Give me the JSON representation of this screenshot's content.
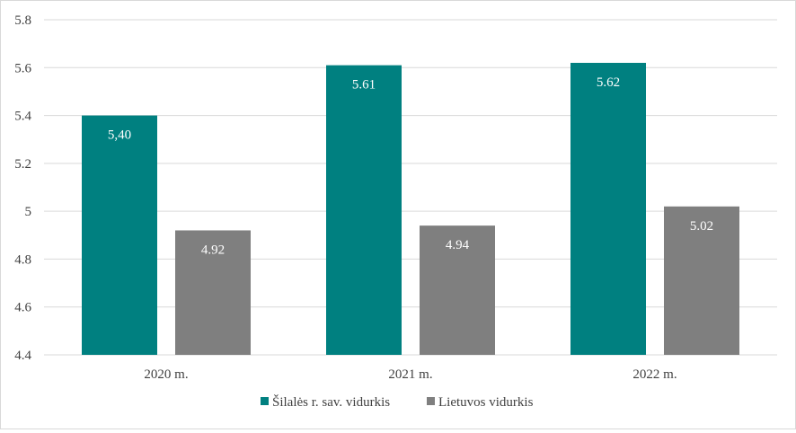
{
  "chart_data": {
    "type": "bar",
    "categories": [
      "2020 m.",
      "2021 m.",
      "2022 m."
    ],
    "series": [
      {
        "name": "Šilalės r. sav. vidurkis",
        "values": [
          5.4,
          5.61,
          5.62
        ],
        "labels": [
          "5,40",
          "5.61",
          "5.62"
        ],
        "color": "#008080"
      },
      {
        "name": "Lietuvos vidurkis",
        "values": [
          4.92,
          4.94,
          5.02
        ],
        "labels": [
          "4.92",
          "4.94",
          "5.02"
        ],
        "color": "#7f7f7f"
      }
    ],
    "ylim": [
      4.4,
      5.8
    ],
    "yticks": [
      {
        "value": 5.8,
        "label": "5.8"
      },
      {
        "value": 5.6,
        "label": "5.6"
      },
      {
        "value": 5.4,
        "label": "5.4"
      },
      {
        "value": 5.2,
        "label": "5.2"
      },
      {
        "value": 5.0,
        "label": "5"
      },
      {
        "value": 4.8,
        "label": "4.8"
      },
      {
        "value": 4.6,
        "label": "4.6"
      },
      {
        "value": 4.4,
        "label": "4.4"
      }
    ],
    "grid": true,
    "legend_position": "bottom",
    "gridline_color": "#d9d9d9"
  }
}
